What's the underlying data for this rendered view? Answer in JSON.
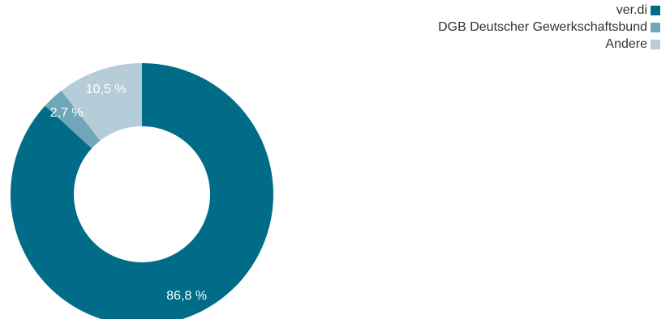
{
  "chart_data": {
    "type": "pie",
    "title": "",
    "legend_position": "top-right",
    "series": [
      {
        "name": "ver.di",
        "value": 86.8,
        "label": "86,8 %",
        "color": "#006c87"
      },
      {
        "name": "DGB Deutscher Gewerkschaftsbund",
        "value": 2.7,
        "label": "2,7 %",
        "color": "#6fa6b8"
      },
      {
        "name": "Andere",
        "value": 10.5,
        "label": "10,5 %",
        "color": "#b4cdd9"
      }
    ]
  }
}
